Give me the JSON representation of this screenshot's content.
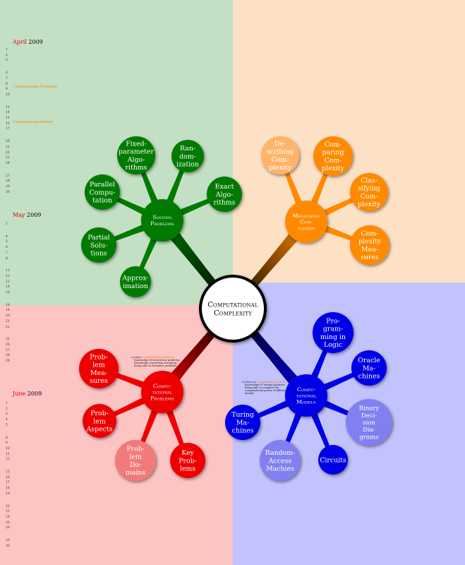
{
  "colors": {
    "green": "#007a00",
    "orange": "#ff8a00",
    "blue": "#0000e6",
    "red": "#ee0000",
    "light_orange": "#ffb46a",
    "light_blue": "#8080f0",
    "light_red": "#f27a7a",
    "center": "#ffffff"
  },
  "center": {
    "line1": "Computational",
    "line2": "Complexity"
  },
  "groups": {
    "solving": {
      "lines": [
        "Solving",
        "Problems"
      ]
    },
    "measuring": {
      "lines": [
        "Measuring",
        "Com-",
        "plexity"
      ]
    },
    "computational": {
      "lines": [
        "Compu-",
        "tational",
        "Problems"
      ]
    },
    "models": {
      "lines": [
        "Compu-",
        "tational",
        "Models"
      ]
    }
  },
  "leaves": {
    "fixed_parameter": [
      "Fixed-",
      "parameter",
      "Algo-",
      "rithms"
    ],
    "randomization": [
      "Ran-",
      "dom-",
      "ization"
    ],
    "exact_algorithms": [
      "Exact",
      "Algo-",
      "rithms"
    ],
    "parallel_computation": [
      "Parallel",
      "Compu-",
      "tation"
    ],
    "partial_solutions": [
      "Partial",
      "Solu-",
      "tions"
    ],
    "approximation": [
      "Approx-",
      "imation"
    ],
    "describing_complexity": [
      "De-",
      "scribing",
      "Com-",
      "plexity"
    ],
    "comparing_complexity": [
      "Com-",
      "paring",
      "Com-",
      "plexity"
    ],
    "classifying_complexity": [
      "Clas-",
      "sifying",
      "Com-",
      "plexity"
    ],
    "complexity_measures": [
      "Com-",
      "plexity",
      "Mea-",
      "sures"
    ],
    "problem_measures": [
      "Prob-",
      "lem",
      "Mea-",
      "sures"
    ],
    "problem_aspects": [
      "Prob-",
      "lem",
      "Aspects"
    ],
    "problem_domains": [
      "Prob-",
      "lem",
      "Do-",
      "mains"
    ],
    "key_problems": [
      "Key",
      "Prob-",
      "lems"
    ],
    "programming_in_logic": [
      "Pro-",
      "gram-",
      "ming in",
      "Logic"
    ],
    "oracle_machines": [
      "Oracle",
      "Ma-",
      "chines"
    ],
    "binary_decision_diagrams": [
      "Binary",
      "Deci-",
      "sion",
      "Dia-",
      "grams"
    ],
    "circuits": [
      "Circuits"
    ],
    "random_access_machines": [
      "Random-",
      "Access",
      "Machies"
    ],
    "turing_machines": [
      "Turing",
      "Ma-",
      "chines"
    ]
  },
  "calendar": {
    "months": [
      {
        "month": "April",
        "year": "2009"
      },
      {
        "month": "May",
        "year": "2009"
      },
      {
        "month": "June",
        "year": "2009"
      }
    ],
    "days": {
      "april": [
        "1",
        "2",
        "3",
        "6",
        "7",
        "8",
        "9",
        "10",
        "13",
        "14",
        "15",
        "16",
        "17",
        "20",
        "21",
        "22",
        "23",
        "24",
        "27",
        "28",
        "29",
        "30"
      ],
      "may": [
        "1",
        "4",
        "5",
        "6",
        "7",
        "8",
        "11",
        "12",
        "13",
        "14",
        "15",
        "18",
        "19",
        "20",
        "21",
        "22",
        "25",
        "26",
        "27",
        "28",
        "29"
      ],
      "june": [
        "1",
        "2",
        "3",
        "4",
        "5",
        "8",
        "9",
        "10",
        "11",
        "12",
        "15",
        "16",
        "17",
        "18",
        "19",
        "22",
        "23",
        "24",
        "25",
        "26",
        "29",
        "30"
      ]
    },
    "events": [
      "Computational Problems",
      "Computational Models"
    ]
  },
  "notes": {
    "problems": {
      "head_prefix": "Lecture ",
      "head_highlight": "Computational Problems",
      "items": [
        "Knowledge of several key problems",
        "Knowledge of problem encodings",
        "Being able to formalize problems"
      ]
    },
    "models": {
      "head_prefix": "Lecture on ",
      "head_highlight": "Computational Models",
      "items": [
        "Knowledge of Turing machines",
        "Being able to compare the",
        "computational power of different",
        "models"
      ]
    }
  }
}
